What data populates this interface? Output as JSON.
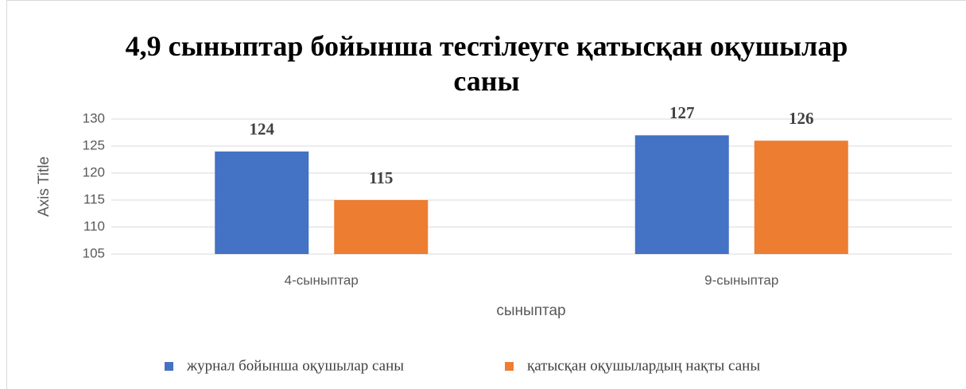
{
  "chart_data": {
    "type": "bar",
    "title": "4,9 сыныптар бойынша тестілеуге қатысқан оқушылар саны",
    "x_label": "сыныптар",
    "y_label": "Axis Title",
    "categories": [
      "4-сыныптар",
      "9-сыныптар"
    ],
    "series": [
      {
        "name": "журнал бойынша оқушылар саны",
        "color": "#4472c4",
        "values": [
          124,
          127
        ]
      },
      {
        "name": "қатысқан оқушылардың нақты саны",
        "color": "#ed7d31",
        "values": [
          115,
          126
        ]
      }
    ],
    "ylim": [
      105,
      130
    ],
    "yticks": [
      105,
      110,
      115,
      120,
      125,
      130
    ],
    "grid": true,
    "legend": "bottom"
  }
}
